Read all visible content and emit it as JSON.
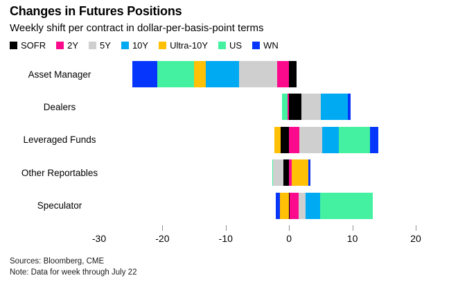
{
  "title": "Changes in Futures Positions",
  "subtitle": "Weekly shift per contract in dollar-per-basis-point terms",
  "footer": {
    "sources": "Sources: Bloomberg, CME",
    "note": "Note: Data for week through July 22"
  },
  "chart_data": {
    "type": "bar",
    "orientation": "horizontal-stacked",
    "title": "Changes in Futures Positions",
    "subtitle": "Weekly shift per contract in dollar-per-basis-point terms",
    "categories": [
      "Asset Manager",
      "Dealers",
      "Leveraged Funds",
      "Other Reportables",
      "Speculator"
    ],
    "series": [
      {
        "name": "SOFR",
        "color": "#000000",
        "values": [
          1.2,
          2.0,
          -1.3,
          -0.9,
          0.1
        ]
      },
      {
        "name": "2Y",
        "color": "#fc0a8c",
        "values": [
          -1.9,
          -0.2,
          1.6,
          0.4,
          1.4
        ]
      },
      {
        "name": "5Y",
        "color": "#cfcfcf",
        "values": [
          -6.0,
          3.0,
          3.6,
          -1.6,
          1.1
        ]
      },
      {
        "name": "10Y",
        "color": "#00aaf3",
        "values": [
          -5.3,
          4.3,
          2.7,
          0.0,
          2.3
        ]
      },
      {
        "name": "Ultra-10Y",
        "color": "#ffc006",
        "values": [
          -1.8,
          0.0,
          -1.0,
          2.6,
          -1.4
        ]
      },
      {
        "name": "US",
        "color": "#44f1a1",
        "values": [
          -5.8,
          -0.9,
          4.9,
          -0.2,
          8.3
        ]
      },
      {
        "name": "WN",
        "color": "#0636fb",
        "values": [
          -3.9,
          0.4,
          1.3,
          0.4,
          -0.7
        ]
      }
    ],
    "xlim": [
      -30,
      20
    ],
    "x_tick_labels": [
      -30,
      -20,
      -10,
      0,
      10,
      20
    ],
    "x_tick_marks": [
      -20,
      -10,
      0,
      10,
      20
    ],
    "xlabel": "",
    "ylabel": "",
    "legend_position": "top",
    "grid": false
  }
}
